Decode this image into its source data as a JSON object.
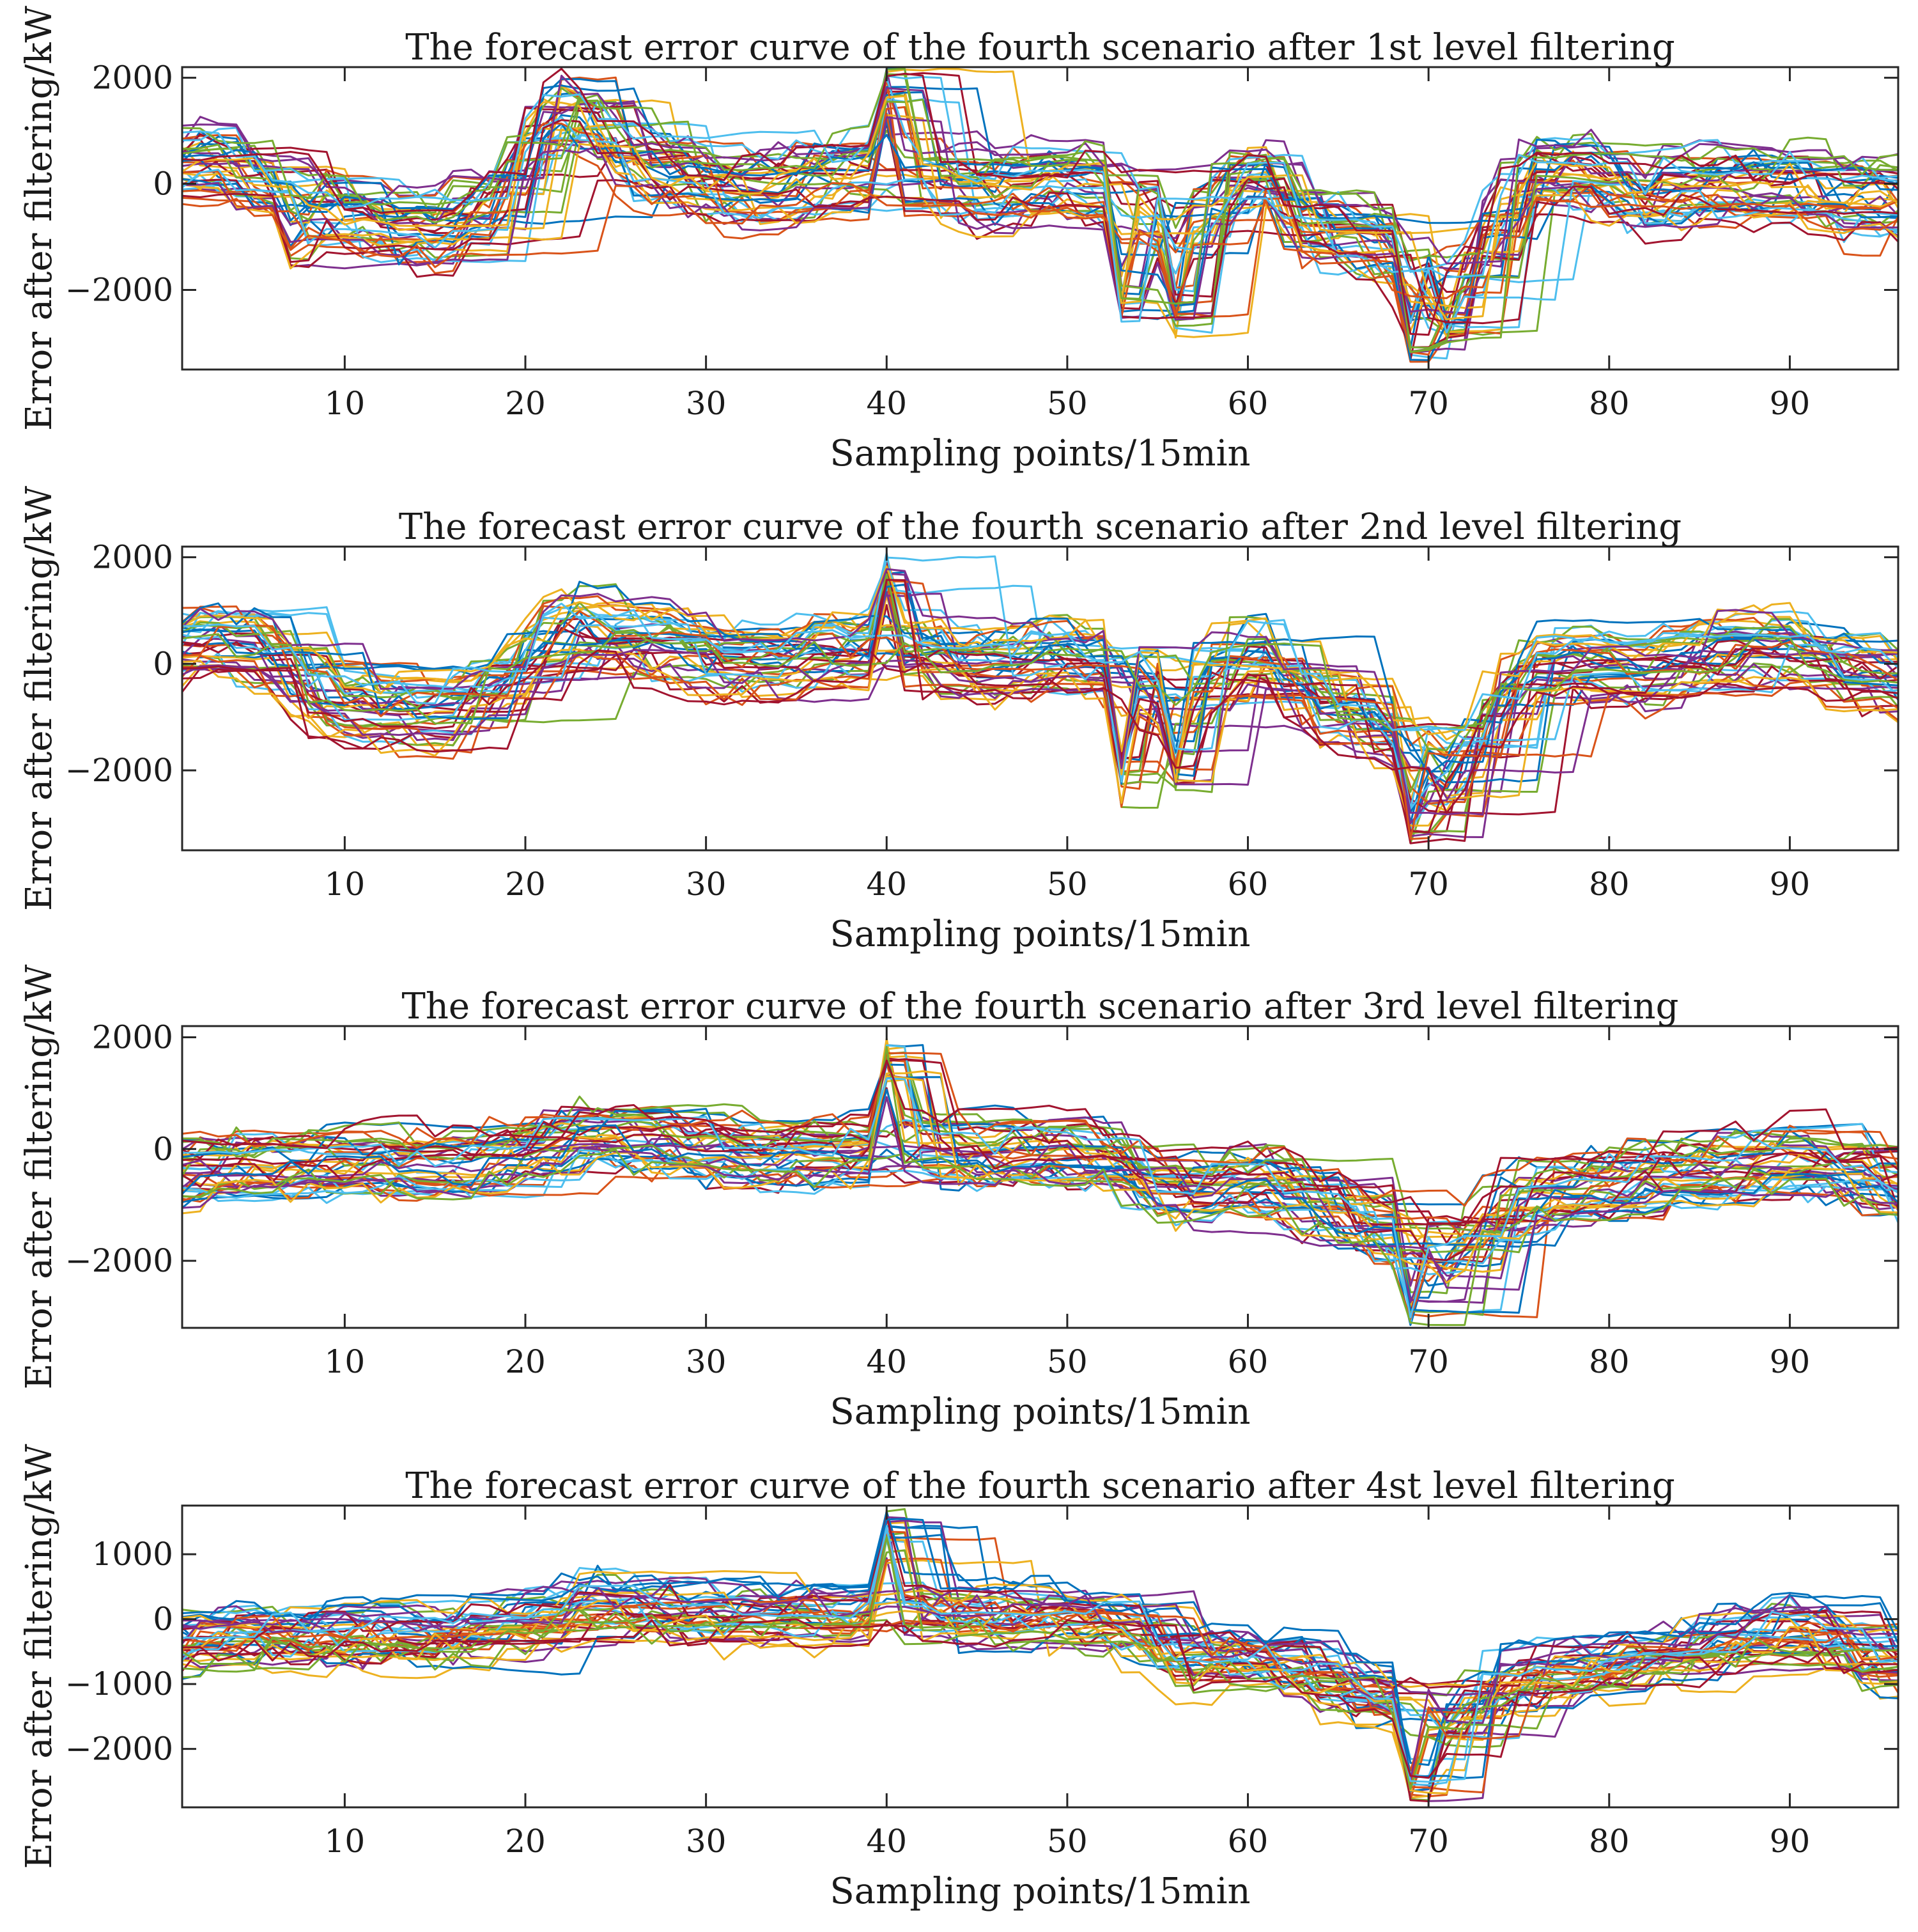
{
  "figure": {
    "colors": [
      "#0072BD",
      "#D95319",
      "#EDB120",
      "#7E2F8E",
      "#77AC30",
      "#4DBEEE",
      "#A2142F"
    ],
    "curves_per_panel": 42,
    "x_range": [
      1,
      96
    ]
  },
  "chart_data": [
    {
      "type": "line",
      "title": "The forecast error curve of the fourth scenario after 1st level filtering",
      "xlabel": "Sampling points/15min",
      "ylabel": "Error after filtering/kW",
      "xlim": [
        1,
        96
      ],
      "ylim": [
        -3500,
        2200
      ],
      "xticks": [
        10,
        20,
        30,
        40,
        50,
        60,
        70,
        80,
        90
      ],
      "yticks": [
        -2000,
        0,
        2000
      ],
      "xtick_labels": [
        "10",
        "20",
        "30",
        "40",
        "50",
        "60",
        "70",
        "80",
        "90"
      ],
      "ytick_labels": [
        "−2000",
        "0",
        "2000"
      ],
      "x": [
        1,
        2,
        3,
        4,
        5,
        6,
        7,
        8,
        9,
        10,
        11,
        12,
        13,
        14,
        15,
        16,
        17,
        18,
        19,
        20,
        21,
        22,
        23,
        24,
        25,
        26,
        27,
        28,
        29,
        30,
        31,
        32,
        33,
        34,
        35,
        36,
        37,
        38,
        39,
        40,
        41,
        42,
        43,
        44,
        45,
        46,
        47,
        48,
        49,
        50,
        51,
        52,
        53,
        54,
        55,
        56,
        57,
        58,
        59,
        60,
        61,
        62,
        63,
        64,
        65,
        66,
        67,
        68,
        69,
        70,
        71,
        72,
        73,
        74,
        75,
        76,
        77,
        78,
        79,
        80,
        81,
        82,
        83,
        84,
        85,
        86,
        87,
        88,
        89,
        90,
        91,
        92,
        93,
        94,
        95,
        96
      ],
      "series_mean": [
        400,
        500,
        450,
        100,
        -100,
        -200,
        -800,
        -500,
        -500,
        -600,
        -700,
        -800,
        -900,
        -850,
        -900,
        -600,
        -400,
        -300,
        200,
        900,
        1300,
        1600,
        1400,
        1000,
        700,
        400,
        300,
        200,
        100,
        0,
        -100,
        -100,
        -100,
        0,
        100,
        200,
        300,
        300,
        300,
        400,
        200,
        100,
        0,
        -100,
        -100,
        -100,
        0,
        100,
        200,
        100,
        0,
        -100,
        -300,
        -500,
        -700,
        -900,
        -500,
        -200,
        0,
        300,
        200,
        -500,
        -800,
        -900,
        -900,
        -1000,
        -1200,
        -1400,
        -1800,
        -1900,
        -1900,
        -1500,
        -800,
        -300,
        100,
        300,
        300,
        300,
        200,
        100,
        -100,
        -300,
        0,
        0,
        0,
        0,
        0,
        0,
        0,
        200,
        -100,
        -300,
        -400,
        -300,
        -200,
        -200
      ],
      "spikes": [
        {
          "x": 40,
          "y": 2200
        },
        {
          "x": 69,
          "y": -3400
        },
        {
          "x": 53,
          "y": -2600
        },
        {
          "x": 56,
          "y": -2900
        },
        {
          "x": 71,
          "y": -2900
        }
      ],
      "spread": 650
    },
    {
      "type": "line",
      "title": "The forecast error curve of the fourth scenario after 2nd level filtering",
      "xlabel": "Sampling points/15min",
      "ylabel": "Error after filtering/kW",
      "xlim": [
        1,
        96
      ],
      "ylim": [
        -3500,
        2200
      ],
      "xticks": [
        10,
        20,
        30,
        40,
        50,
        60,
        70,
        80,
        90
      ],
      "yticks": [
        -2000,
        0,
        2000
      ],
      "xtick_labels": [
        "10",
        "20",
        "30",
        "40",
        "50",
        "60",
        "70",
        "80",
        "90"
      ],
      "ytick_labels": [
        "−2000",
        "0",
        "2000"
      ],
      "x": [
        1,
        2,
        3,
        4,
        5,
        6,
        7,
        8,
        9,
        10,
        11,
        12,
        13,
        14,
        15,
        16,
        17,
        18,
        19,
        20,
        21,
        22,
        23,
        24,
        25,
        26,
        27,
        28,
        29,
        30,
        31,
        32,
        33,
        34,
        35,
        36,
        37,
        38,
        39,
        40,
        41,
        42,
        43,
        44,
        45,
        46,
        47,
        48,
        49,
        50,
        51,
        52,
        53,
        54,
        55,
        56,
        57,
        58,
        59,
        60,
        61,
        62,
        63,
        64,
        65,
        66,
        67,
        68,
        69,
        70,
        71,
        72,
        73,
        74,
        75,
        76,
        77,
        78,
        79,
        80,
        81,
        82,
        83,
        84,
        85,
        86,
        87,
        88,
        89,
        90,
        91,
        92,
        93,
        94,
        95,
        96
      ],
      "series_mean": [
        300,
        400,
        350,
        250,
        200,
        100,
        -400,
        -600,
        -700,
        -800,
        -850,
        -900,
        -900,
        -900,
        -950,
        -700,
        -500,
        -400,
        -200,
        100,
        400,
        600,
        700,
        600,
        500,
        400,
        300,
        200,
        100,
        0,
        0,
        0,
        0,
        0,
        100,
        200,
        200,
        200,
        200,
        300,
        200,
        100,
        0,
        -100,
        -100,
        -100,
        0,
        100,
        100,
        100,
        0,
        -100,
        -300,
        -400,
        -500,
        -600,
        -400,
        -100,
        100,
        200,
        100,
        -400,
        -800,
        -900,
        -1000,
        -1100,
        -1300,
        -1500,
        -1800,
        -2000,
        -2200,
        -1700,
        -1000,
        -600,
        -300,
        0,
        0,
        0,
        -100,
        -200,
        -200,
        -300,
        0,
        100,
        200,
        200,
        200,
        300,
        300,
        200,
        100,
        -100,
        -200,
        -200,
        -300,
        -400
      ],
      "spikes": [
        {
          "x": 40,
          "y": 2100
        },
        {
          "x": 69,
          "y": -3400
        },
        {
          "x": 53,
          "y": -2700
        },
        {
          "x": 56,
          "y": -2500
        }
      ],
      "spread": 600
    },
    {
      "type": "line",
      "title": "The forecast error curve of the fourth scenario after 3rd level filtering",
      "xlabel": "Sampling points/15min",
      "ylabel": "Error after filtering/kW",
      "xlim": [
        1,
        96
      ],
      "ylim": [
        -3200,
        2200
      ],
      "xticks": [
        10,
        20,
        30,
        40,
        50,
        60,
        70,
        80,
        90
      ],
      "yticks": [
        -2000,
        0,
        2000
      ],
      "xtick_labels": [
        "10",
        "20",
        "30",
        "40",
        "50",
        "60",
        "70",
        "80",
        "90"
      ],
      "ytick_labels": [
        "−2000",
        "0",
        "2000"
      ],
      "x": [
        1,
        2,
        3,
        4,
        5,
        6,
        7,
        8,
        9,
        10,
        11,
        12,
        13,
        14,
        15,
        16,
        17,
        18,
        19,
        20,
        21,
        22,
        23,
        24,
        25,
        26,
        27,
        28,
        29,
        30,
        31,
        32,
        33,
        34,
        35,
        36,
        37,
        38,
        39,
        40,
        41,
        42,
        43,
        44,
        45,
        46,
        47,
        48,
        49,
        50,
        51,
        52,
        53,
        54,
        55,
        56,
        57,
        58,
        59,
        60,
        61,
        62,
        63,
        64,
        65,
        66,
        67,
        68,
        69,
        70,
        71,
        72,
        73,
        74,
        75,
        76,
        77,
        78,
        79,
        80,
        81,
        82,
        83,
        84,
        85,
        86,
        87,
        88,
        89,
        90,
        91,
        92,
        93,
        94,
        95,
        96
      ],
      "series_mean": [
        -400,
        -300,
        -250,
        -200,
        -200,
        -200,
        -200,
        -200,
        -200,
        -200,
        -200,
        -200,
        -200,
        -200,
        -250,
        -200,
        -150,
        -100,
        0,
        100,
        200,
        300,
        350,
        300,
        250,
        200,
        150,
        100,
        50,
        0,
        0,
        0,
        0,
        0,
        0,
        0,
        0,
        50,
        100,
        150,
        100,
        50,
        0,
        0,
        0,
        0,
        0,
        0,
        0,
        0,
        -50,
        -100,
        -300,
        -500,
        -700,
        -800,
        -700,
        -600,
        -500,
        -500,
        -550,
        -700,
        -900,
        -1000,
        -1100,
        -1200,
        -1300,
        -1400,
        -1600,
        -1700,
        -2000,
        -1500,
        -1100,
        -900,
        -800,
        -750,
        -700,
        -650,
        -600,
        -550,
        -500,
        -450,
        -400,
        -350,
        -300,
        -250,
        -200,
        -150,
        -100,
        -50,
        -200,
        -300,
        -400,
        -500,
        -600,
        -700
      ],
      "spikes": [
        {
          "x": 40,
          "y": 2000
        },
        {
          "x": 69,
          "y": -3200
        }
      ],
      "spread": 550
    },
    {
      "type": "line",
      "title": "The forecast error curve of the fourth scenario after 4st level filtering",
      "xlabel": "Sampling points/15min",
      "ylabel": "Error after filtering/kW",
      "xlim": [
        1,
        96
      ],
      "ylim": [
        -2900,
        1750
      ],
      "xticks": [
        10,
        20,
        30,
        40,
        50,
        60,
        70,
        80,
        90
      ],
      "yticks": [
        -2000,
        -1000,
        0,
        1000
      ],
      "xtick_labels": [
        "10",
        "20",
        "30",
        "40",
        "50",
        "60",
        "70",
        "80",
        "90"
      ],
      "ytick_labels": [
        "−2000",
        "−1000",
        "0",
        "1000"
      ],
      "x": [
        1,
        2,
        3,
        4,
        5,
        6,
        7,
        8,
        9,
        10,
        11,
        12,
        13,
        14,
        15,
        16,
        17,
        18,
        19,
        20,
        21,
        22,
        23,
        24,
        25,
        26,
        27,
        28,
        29,
        30,
        31,
        32,
        33,
        34,
        35,
        36,
        37,
        38,
        39,
        40,
        41,
        42,
        43,
        44,
        45,
        46,
        47,
        48,
        49,
        50,
        51,
        52,
        53,
        54,
        55,
        56,
        57,
        58,
        59,
        60,
        61,
        62,
        63,
        64,
        65,
        66,
        67,
        68,
        69,
        70,
        71,
        72,
        73,
        74,
        75,
        76,
        77,
        78,
        79,
        80,
        81,
        82,
        83,
        84,
        85,
        86,
        87,
        88,
        89,
        90,
        91,
        92,
        93,
        94,
        95,
        96
      ],
      "series_mean": [
        -400,
        -350,
        -300,
        -300,
        -300,
        -300,
        -300,
        -300,
        -300,
        -300,
        -300,
        -300,
        -300,
        -300,
        -300,
        -250,
        -200,
        -150,
        -100,
        -50,
        0,
        100,
        200,
        200,
        150,
        100,
        100,
        50,
        0,
        0,
        0,
        0,
        0,
        0,
        0,
        0,
        0,
        50,
        100,
        150,
        100,
        50,
        0,
        0,
        0,
        0,
        0,
        0,
        0,
        0,
        -50,
        -100,
        -200,
        -300,
        -500,
        -700,
        -650,
        -600,
        -600,
        -650,
        -700,
        -800,
        -900,
        -1000,
        -1100,
        -1200,
        -1250,
        -1300,
        -1400,
        -1500,
        -1700,
        -1300,
        -1100,
        -1000,
        -950,
        -900,
        -850,
        -800,
        -750,
        -700,
        -650,
        -600,
        -550,
        -500,
        -450,
        -400,
        -350,
        -300,
        -250,
        -200,
        -300,
        -400,
        -500,
        -600,
        -700,
        -800
      ],
      "spikes": [
        {
          "x": 40,
          "y": 1700
        },
        {
          "x": 69,
          "y": -2800
        }
      ],
      "spread": 500
    }
  ]
}
